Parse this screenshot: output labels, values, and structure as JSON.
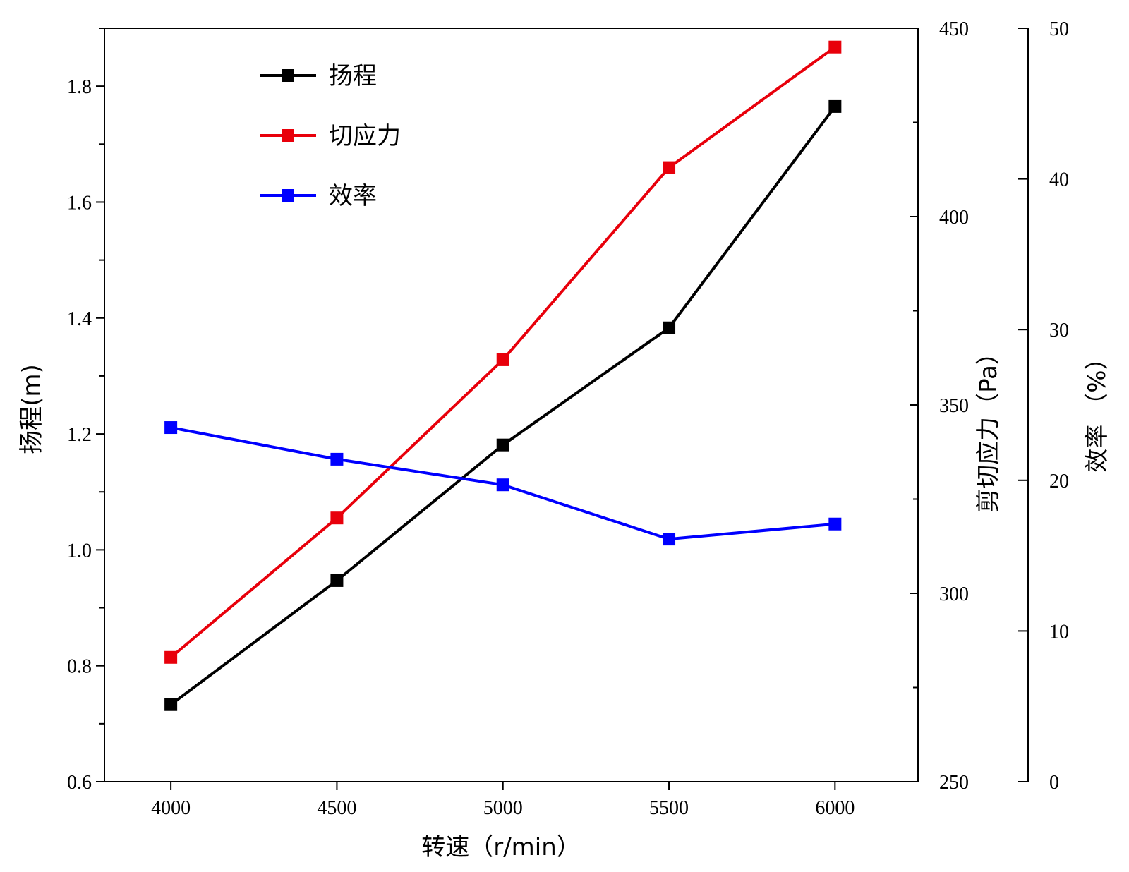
{
  "chart_data": {
    "type": "line",
    "x": [
      4000,
      4500,
      5000,
      5500,
      6000
    ],
    "xlabel": "转速（r/min）",
    "x_ticks": [
      4000,
      4500,
      5000,
      5500,
      6000
    ],
    "axes": {
      "left": {
        "label": "扬程(m)",
        "range": [
          0.6,
          1.9
        ],
        "ticks": [
          "0.6",
          "0.8",
          "1.0",
          "1.2",
          "1.4",
          "1.6",
          "1.8"
        ]
      },
      "right1": {
        "label": "剪切应力（Pa）",
        "range": [
          250,
          450
        ],
        "ticks": [
          "250",
          "300",
          "350",
          "400",
          "450"
        ]
      },
      "right2": {
        "label": "效率 （%）",
        "range": [
          0,
          50
        ],
        "ticks": [
          "0",
          "10",
          "20",
          "30",
          "40",
          "50"
        ]
      }
    },
    "series": [
      {
        "name": "扬程",
        "axis": "left",
        "color": "#000000",
        "values": [
          0.733,
          0.947,
          1.181,
          1.383,
          1.765
        ]
      },
      {
        "name": "切应力",
        "axis": "right1",
        "color": "#e8000b",
        "values": [
          283,
          320,
          362,
          413,
          445
        ]
      },
      {
        "name": "效率",
        "axis": "right2",
        "color": "#0000ff",
        "values": [
          23.5,
          21.4,
          19.7,
          16.1,
          17.1
        ]
      }
    ],
    "legend_position": "top-left",
    "grid": false
  }
}
